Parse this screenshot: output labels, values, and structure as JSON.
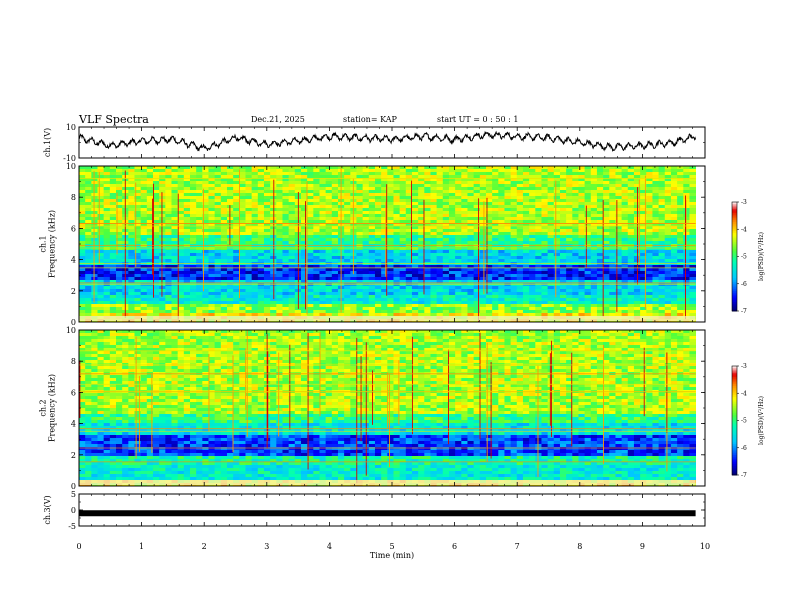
{
  "header": {
    "title": "VLF Spectra",
    "date": "Dec.21, 2025",
    "station": "station= KAP",
    "start": "start  UT =   0 : 50 : 1"
  },
  "chart_data": [
    {
      "type": "line",
      "name": "ch1-waveform",
      "ylabel": "ch.1(V)",
      "yticks": [
        "10",
        "-10"
      ],
      "ylim": [
        -10,
        10
      ],
      "xlim": [
        0,
        10
      ],
      "x": [
        0,
        0.5,
        1,
        1.5,
        2,
        2.5,
        3,
        3.5,
        4,
        4.5,
        5,
        5.5,
        6,
        6.5,
        7,
        7.5,
        8,
        8.5,
        9,
        9.5,
        9.85
      ],
      "y": [
        3,
        -2,
        1,
        2,
        -4,
        3,
        -1,
        1,
        4,
        3,
        2,
        4,
        2,
        5,
        4,
        3,
        0,
        -3,
        -2,
        0,
        4
      ]
    },
    {
      "type": "heatmap",
      "name": "ch1-spectrogram",
      "ylabel": "ch.1\nFrequency (kHz)",
      "ylabel_lines": [
        "ch.1",
        "Frequency (kHz)"
      ],
      "yticks": [
        "0",
        "2",
        "4",
        "6",
        "8",
        "10"
      ],
      "ylim": [
        0,
        10
      ],
      "xlim": [
        0,
        10
      ],
      "data_xmax": 9.85,
      "bands": [
        {
          "from": 0,
          "to": 0.5,
          "level": -4.2
        },
        {
          "from": 0.5,
          "to": 1.2,
          "level": -4.6
        },
        {
          "from": 1.2,
          "to": 1.8,
          "level": -5.4
        },
        {
          "from": 1.8,
          "to": 2.6,
          "level": -5.6
        },
        {
          "from": 2.6,
          "to": 3.6,
          "level": -6.4
        },
        {
          "from": 3.6,
          "to": 4.6,
          "level": -5.6
        },
        {
          "from": 4.6,
          "to": 5.6,
          "level": -5.0
        },
        {
          "from": 5.6,
          "to": 10,
          "level": -4.5
        }
      ],
      "colorbar": {
        "label": "log(PSD)(V²/Hz)",
        "ticks": [
          "-3",
          "-4",
          "-5",
          "-6",
          "-7"
        ],
        "range": [
          -7,
          -3
        ]
      }
    },
    {
      "type": "heatmap",
      "name": "ch2-spectrogram",
      "ylabel": "ch.2\nFrequency (kHz)",
      "ylabel_lines": [
        "ch.2",
        "Frequency (kHz)"
      ],
      "yticks": [
        "0",
        "2",
        "4",
        "6",
        "8",
        "10"
      ],
      "ylim": [
        0,
        10
      ],
      "xlim": [
        0,
        10
      ],
      "data_xmax": 9.85,
      "bands": [
        {
          "from": 0,
          "to": 0.4,
          "level": -4.2
        },
        {
          "from": 0.4,
          "to": 1.4,
          "level": -5.4
        },
        {
          "from": 1.4,
          "to": 2.0,
          "level": -5.2
        },
        {
          "from": 2.0,
          "to": 3.2,
          "level": -6.3
        },
        {
          "from": 3.2,
          "to": 4.0,
          "level": -5.5
        },
        {
          "from": 4.0,
          "to": 4.6,
          "level": -5.0
        },
        {
          "from": 4.6,
          "to": 10,
          "level": -4.5
        }
      ],
      "colorbar": {
        "label": "log(PSD)(V²/Hz)",
        "ticks": [
          "-3",
          "-4",
          "-5",
          "-6",
          "-7"
        ],
        "range": [
          -7,
          -3
        ]
      }
    },
    {
      "type": "line",
      "name": "ch3-waveform",
      "ylabel": "ch.3(V)",
      "yticks": [
        "5",
        "0",
        "-5"
      ],
      "ylim": [
        -5,
        5
      ],
      "xlim": [
        0,
        10
      ],
      "x": [
        0,
        9.85
      ],
      "y": [
        -1,
        -1
      ]
    }
  ],
  "xaxis": {
    "label": "Time (min)",
    "ticks": [
      "0",
      "1",
      "2",
      "3",
      "4",
      "5",
      "6",
      "7",
      "8",
      "9",
      "10"
    ],
    "range": [
      0,
      10
    ]
  }
}
